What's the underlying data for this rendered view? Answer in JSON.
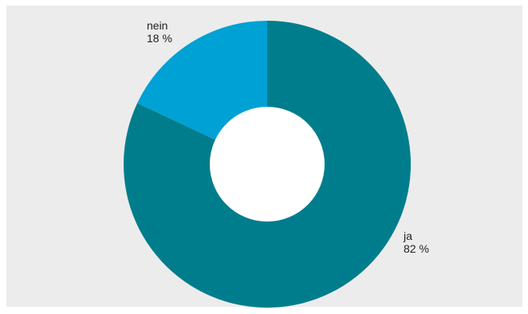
{
  "chart_data": {
    "type": "pie",
    "variant": "donut",
    "slices": [
      {
        "label": "ja",
        "value": 82,
        "value_label": "82 %",
        "color": "#007d8c"
      },
      {
        "label": "nein",
        "value": 18,
        "value_label": "18 %",
        "color": "#00a1d5"
      }
    ],
    "legend": "none",
    "grid": false
  },
  "style": {
    "panel_background": "#ececec",
    "hole_color": "#ffffff"
  }
}
